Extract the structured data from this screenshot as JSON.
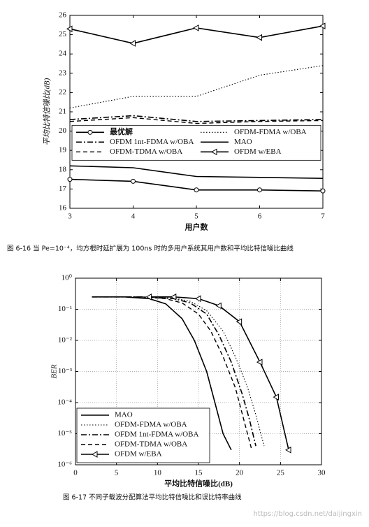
{
  "chart_data": [
    {
      "type": "line",
      "x_label": "用户数",
      "y_label": "平均比特信噪比(dB)",
      "caption": "图 6-16  当 Pe=10⁻⁴，均方根时延扩展为 100ns 时的多用户系统其用户数和平均比特信噪比曲线",
      "x": [
        3,
        4,
        5,
        6,
        7
      ],
      "xlim": [
        3,
        7
      ],
      "xticks": [
        3,
        4,
        5,
        6,
        7
      ],
      "ylim": [
        16,
        26
      ],
      "yticks": [
        16,
        17,
        18,
        19,
        20,
        21,
        22,
        23,
        24,
        25,
        26
      ],
      "grid": false,
      "legend": "center",
      "legend_columns": 2,
      "series": [
        {
          "name": "最优解",
          "color": "#000000",
          "style": "solid",
          "marker": "circle",
          "values": [
            17.5,
            17.4,
            16.95,
            16.95,
            16.9
          ]
        },
        {
          "name": "OFDM-FDMA w/OBA",
          "color": "#000000",
          "style": "dotted",
          "values": [
            21.2,
            21.8,
            21.8,
            22.9,
            23.4
          ]
        },
        {
          "name": "OFDM 1nt-FDMA w/OBA",
          "color": "#000000",
          "style": "dashdot",
          "values": [
            20.6,
            20.8,
            20.5,
            20.55,
            20.6
          ]
        },
        {
          "name": "MAO",
          "color": "#000000",
          "style": "solid",
          "values": [
            18.2,
            18.1,
            17.65,
            17.6,
            17.55
          ]
        },
        {
          "name": "OFDM-TDMA w/OBA",
          "color": "#000000",
          "style": "dashed",
          "values": [
            20.5,
            20.7,
            20.4,
            20.5,
            20.55
          ]
        },
        {
          "name": "OFDM w/EBA",
          "color": "#000000",
          "style": "solid",
          "marker": "triangle",
          "values": [
            25.3,
            24.55,
            25.35,
            24.85,
            25.45
          ]
        }
      ]
    },
    {
      "type": "line",
      "x_label": "平均比特信噪比(dB)",
      "y_label": "BER",
      "caption": "图 6-17  不同子载波分配算法平均比特信噪比和误比特率曲线",
      "log_y": true,
      "xlim": [
        0,
        30
      ],
      "xticks": [
        0,
        5,
        10,
        15,
        20,
        25,
        30
      ],
      "ylim": [
        1e-06,
        1
      ],
      "yticks": [
        {
          "value": 1e-06,
          "label": "10⁻⁶"
        },
        {
          "value": 1e-05,
          "label": "10⁻⁵"
        },
        {
          "value": 0.0001,
          "label": "10⁻⁴"
        },
        {
          "value": 0.001,
          "label": "10⁻³"
        },
        {
          "value": 0.01,
          "label": "10⁻²"
        },
        {
          "value": 0.1,
          "label": "10⁻¹"
        },
        {
          "value": 1,
          "label": "10⁰"
        }
      ],
      "grid": true,
      "legend": "lower left",
      "legend_columns": 1,
      "series": [
        {
          "name": "MAO",
          "color": "#000000",
          "style": "solid",
          "x": [
            2,
            6,
            9,
            11,
            13,
            14.5,
            16,
            17,
            18,
            19
          ],
          "values": [
            0.25,
            0.25,
            0.22,
            0.15,
            0.05,
            0.01,
            0.001,
            0.0001,
            1e-05,
            3e-06
          ]
        },
        {
          "name": "OFDM-FDMA w/OBA",
          "color": "#000000",
          "style": "dotted",
          "x": [
            2,
            8,
            12,
            14,
            16,
            18,
            19.5,
            21,
            22,
            23
          ],
          "values": [
            0.25,
            0.25,
            0.23,
            0.18,
            0.09,
            0.02,
            0.003,
            0.0003,
            4e-05,
            4e-06
          ]
        },
        {
          "name": "OFDM 1nt-FDMA w/OBA",
          "color": "#000000",
          "style": "dashdot",
          "x": [
            2,
            8,
            12,
            14,
            16,
            17.5,
            19,
            20.3,
            21.2,
            22
          ],
          "values": [
            0.25,
            0.25,
            0.22,
            0.16,
            0.07,
            0.015,
            0.002,
            0.0002,
            3e-05,
            4e-06
          ]
        },
        {
          "name": "OFDM-TDMA w/OBA",
          "color": "#000000",
          "style": "dashed",
          "x": [
            2,
            8,
            11,
            13,
            15,
            16.5,
            18,
            19.5,
            20.5,
            21.5
          ],
          "values": [
            0.25,
            0.25,
            0.22,
            0.16,
            0.07,
            0.02,
            0.003,
            0.0003,
            3e-05,
            3e-06
          ]
        },
        {
          "name": "OFDM w/EBA",
          "color": "#000000",
          "style": "solid",
          "marker": "triangle",
          "x": [
            9,
            12,
            15,
            17.5,
            20,
            22.5,
            24.5,
            26
          ],
          "values": [
            0.25,
            0.25,
            0.22,
            0.13,
            0.04,
            0.002,
            0.00015,
            3e-06
          ]
        }
      ]
    }
  ],
  "watermark": "https://blog.csdn.net/daijingxin"
}
